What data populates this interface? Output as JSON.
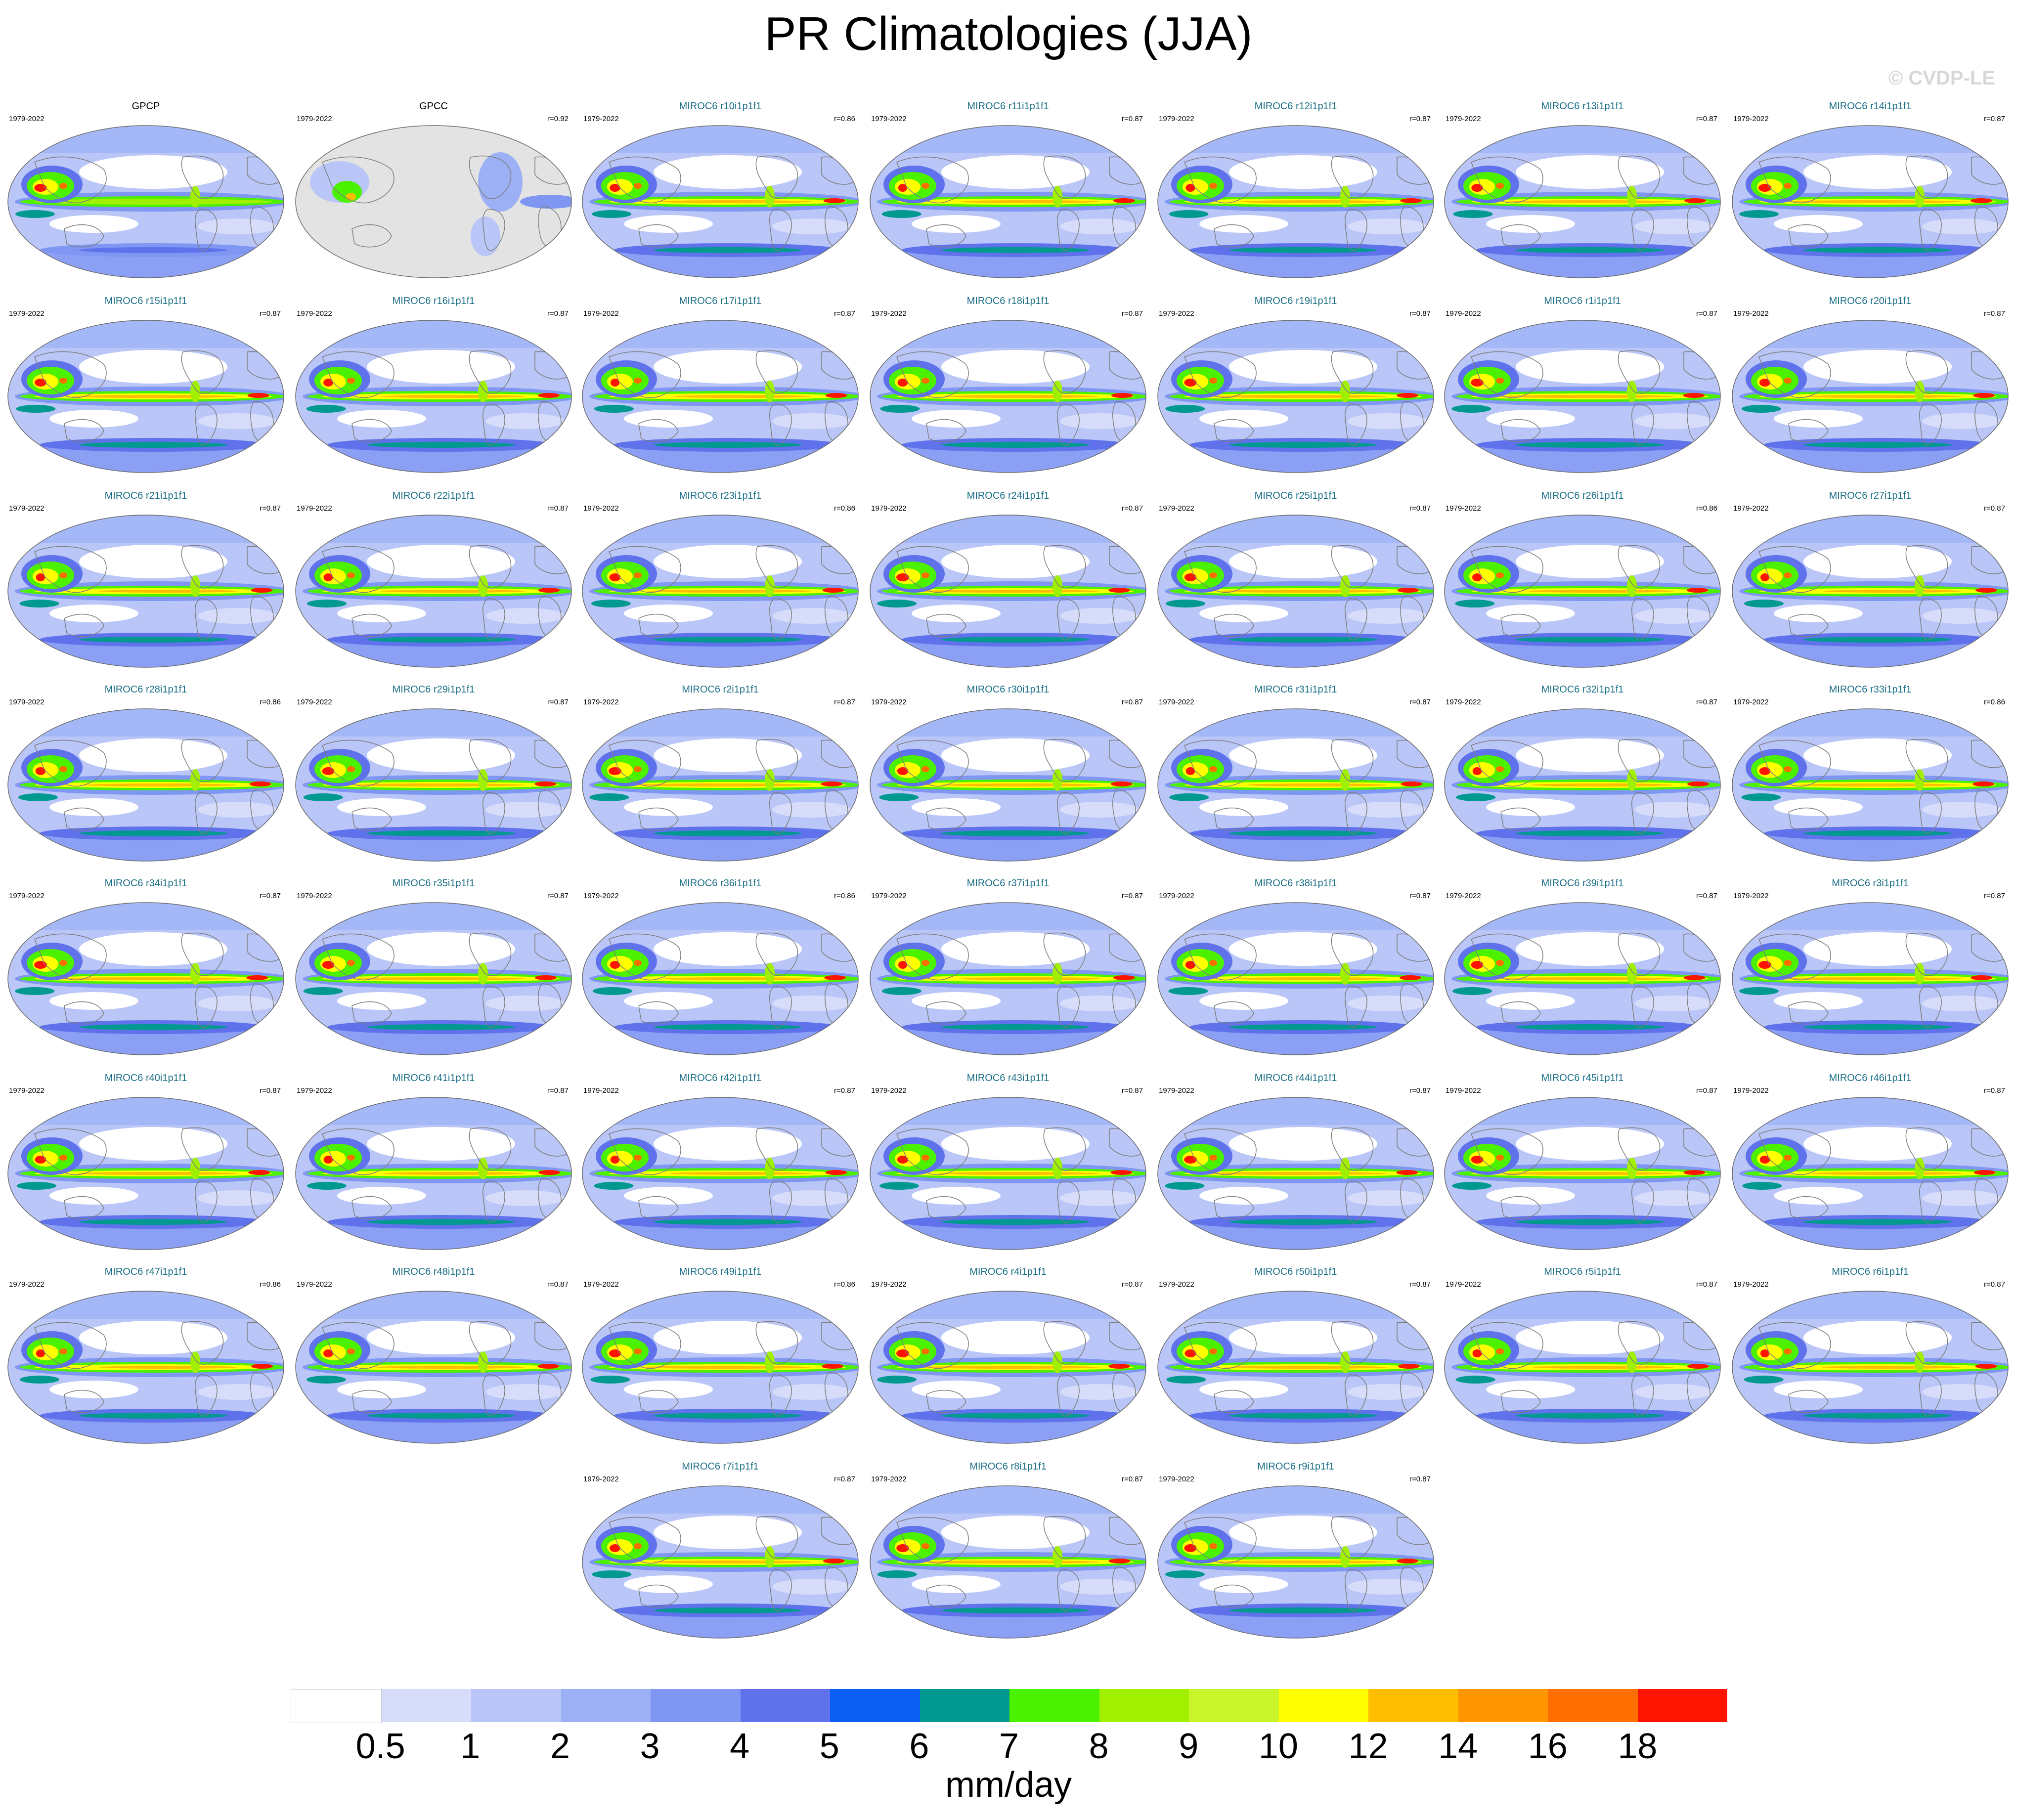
{
  "title": "PR Climatologies (JJA)",
  "watermark": "© CVDP-LE",
  "units": "mm/day",
  "colorbar": {
    "labels": [
      "0.5",
      "1",
      "2",
      "3",
      "4",
      "5",
      "6",
      "7",
      "8",
      "9",
      "10",
      "12",
      "14",
      "16",
      "18"
    ],
    "colors": [
      "#ffffff",
      "#d6dcfa",
      "#b9c6f7",
      "#9bb0f5",
      "#7f96f3",
      "#5f72ec",
      "#0a5ff2",
      "#00998f",
      "#4cf100",
      "#a0f000",
      "#c8f52a",
      "#ffff00",
      "#ffbe00",
      "#ff9600",
      "#ff6e00",
      "#ff1400"
    ]
  },
  "observations": [
    {
      "name": "GPCP",
      "years": "1979-2022",
      "r": ""
    },
    {
      "name": "GPCC",
      "years": "1979-2022",
      "r": "r=0.92"
    }
  ],
  "members": [
    {
      "name": "MIROC6 r10i1p1f1",
      "years": "1979-2022",
      "r": "r=0.86"
    },
    {
      "name": "MIROC6 r11i1p1f1",
      "years": "1979-2022",
      "r": "r=0.87"
    },
    {
      "name": "MIROC6 r12i1p1f1",
      "years": "1979-2022",
      "r": "r=0.87"
    },
    {
      "name": "MIROC6 r13i1p1f1",
      "years": "1979-2022",
      "r": "r=0.87"
    },
    {
      "name": "MIROC6 r14i1p1f1",
      "years": "1979-2022",
      "r": "r=0.87"
    },
    {
      "name": "MIROC6 r15i1p1f1",
      "years": "1979-2022",
      "r": "r=0.87"
    },
    {
      "name": "MIROC6 r16i1p1f1",
      "years": "1979-2022",
      "r": "r=0.87"
    },
    {
      "name": "MIROC6 r17i1p1f1",
      "years": "1979-2022",
      "r": "r=0.87"
    },
    {
      "name": "MIROC6 r18i1p1f1",
      "years": "1979-2022",
      "r": "r=0.87"
    },
    {
      "name": "MIROC6 r19i1p1f1",
      "years": "1979-2022",
      "r": "r=0.87"
    },
    {
      "name": "MIROC6 r1i1p1f1",
      "years": "1979-2022",
      "r": "r=0.87"
    },
    {
      "name": "MIROC6 r20i1p1f1",
      "years": "1979-2022",
      "r": "r=0.87"
    },
    {
      "name": "MIROC6 r21i1p1f1",
      "years": "1979-2022",
      "r": "r=0.87"
    },
    {
      "name": "MIROC6 r22i1p1f1",
      "years": "1979-2022",
      "r": "r=0.87"
    },
    {
      "name": "MIROC6 r23i1p1f1",
      "years": "1979-2022",
      "r": "r=0.86"
    },
    {
      "name": "MIROC6 r24i1p1f1",
      "years": "1979-2022",
      "r": "r=0.87"
    },
    {
      "name": "MIROC6 r25i1p1f1",
      "years": "1979-2022",
      "r": "r=0.87"
    },
    {
      "name": "MIROC6 r26i1p1f1",
      "years": "1979-2022",
      "r": "r=0.86"
    },
    {
      "name": "MIROC6 r27i1p1f1",
      "years": "1979-2022",
      "r": "r=0.87"
    },
    {
      "name": "MIROC6 r28i1p1f1",
      "years": "1979-2022",
      "r": "r=0.86"
    },
    {
      "name": "MIROC6 r29i1p1f1",
      "years": "1979-2022",
      "r": "r=0.87"
    },
    {
      "name": "MIROC6 r2i1p1f1",
      "years": "1979-2022",
      "r": "r=0.87"
    },
    {
      "name": "MIROC6 r30i1p1f1",
      "years": "1979-2022",
      "r": "r=0.87"
    },
    {
      "name": "MIROC6 r31i1p1f1",
      "years": "1979-2022",
      "r": "r=0.87"
    },
    {
      "name": "MIROC6 r32i1p1f1",
      "years": "1979-2022",
      "r": "r=0.87"
    },
    {
      "name": "MIROC6 r33i1p1f1",
      "years": "1979-2022",
      "r": "r=0.86"
    },
    {
      "name": "MIROC6 r34i1p1f1",
      "years": "1979-2022",
      "r": "r=0.87"
    },
    {
      "name": "MIROC6 r35i1p1f1",
      "years": "1979-2022",
      "r": "r=0.87"
    },
    {
      "name": "MIROC6 r36i1p1f1",
      "years": "1979-2022",
      "r": "r=0.86"
    },
    {
      "name": "MIROC6 r37i1p1f1",
      "years": "1979-2022",
      "r": "r=0.87"
    },
    {
      "name": "MIROC6 r38i1p1f1",
      "years": "1979-2022",
      "r": "r=0.87"
    },
    {
      "name": "MIROC6 r39i1p1f1",
      "years": "1979-2022",
      "r": "r=0.87"
    },
    {
      "name": "MIROC6 r3i1p1f1",
      "years": "1979-2022",
      "r": "r=0.87"
    },
    {
      "name": "MIROC6 r40i1p1f1",
      "years": "1979-2022",
      "r": "r=0.87"
    },
    {
      "name": "MIROC6 r41i1p1f1",
      "years": "1979-2022",
      "r": "r=0.87"
    },
    {
      "name": "MIROC6 r42i1p1f1",
      "years": "1979-2022",
      "r": "r=0.87"
    },
    {
      "name": "MIROC6 r43i1p1f1",
      "years": "1979-2022",
      "r": "r=0.87"
    },
    {
      "name": "MIROC6 r44i1p1f1",
      "years": "1979-2022",
      "r": "r=0.87"
    },
    {
      "name": "MIROC6 r45i1p1f1",
      "years": "1979-2022",
      "r": "r=0.87"
    },
    {
      "name": "MIROC6 r46i1p1f1",
      "years": "1979-2022",
      "r": "r=0.87"
    },
    {
      "name": "MIROC6 r47i1p1f1",
      "years": "1979-2022",
      "r": "r=0.86"
    },
    {
      "name": "MIROC6 r48i1p1f1",
      "years": "1979-2022",
      "r": "r=0.87"
    },
    {
      "name": "MIROC6 r49i1p1f1",
      "years": "1979-2022",
      "r": "r=0.86"
    },
    {
      "name": "MIROC6 r4i1p1f1",
      "years": "1979-2022",
      "r": "r=0.87"
    },
    {
      "name": "MIROC6 r50i1p1f1",
      "years": "1979-2022",
      "r": "r=0.87"
    },
    {
      "name": "MIROC6 r5i1p1f1",
      "years": "1979-2022",
      "r": "r=0.87"
    },
    {
      "name": "MIROC6 r6i1p1f1",
      "years": "1979-2022",
      "r": "r=0.87"
    },
    {
      "name": "MIROC6 r7i1p1f1",
      "years": "1979-2022",
      "r": "r=0.87"
    },
    {
      "name": "MIROC6 r8i1p1f1",
      "years": "1979-2022",
      "r": "r=0.87"
    },
    {
      "name": "MIROC6 r9i1p1f1",
      "years": "1979-2022",
      "r": "r=0.87"
    }
  ]
}
